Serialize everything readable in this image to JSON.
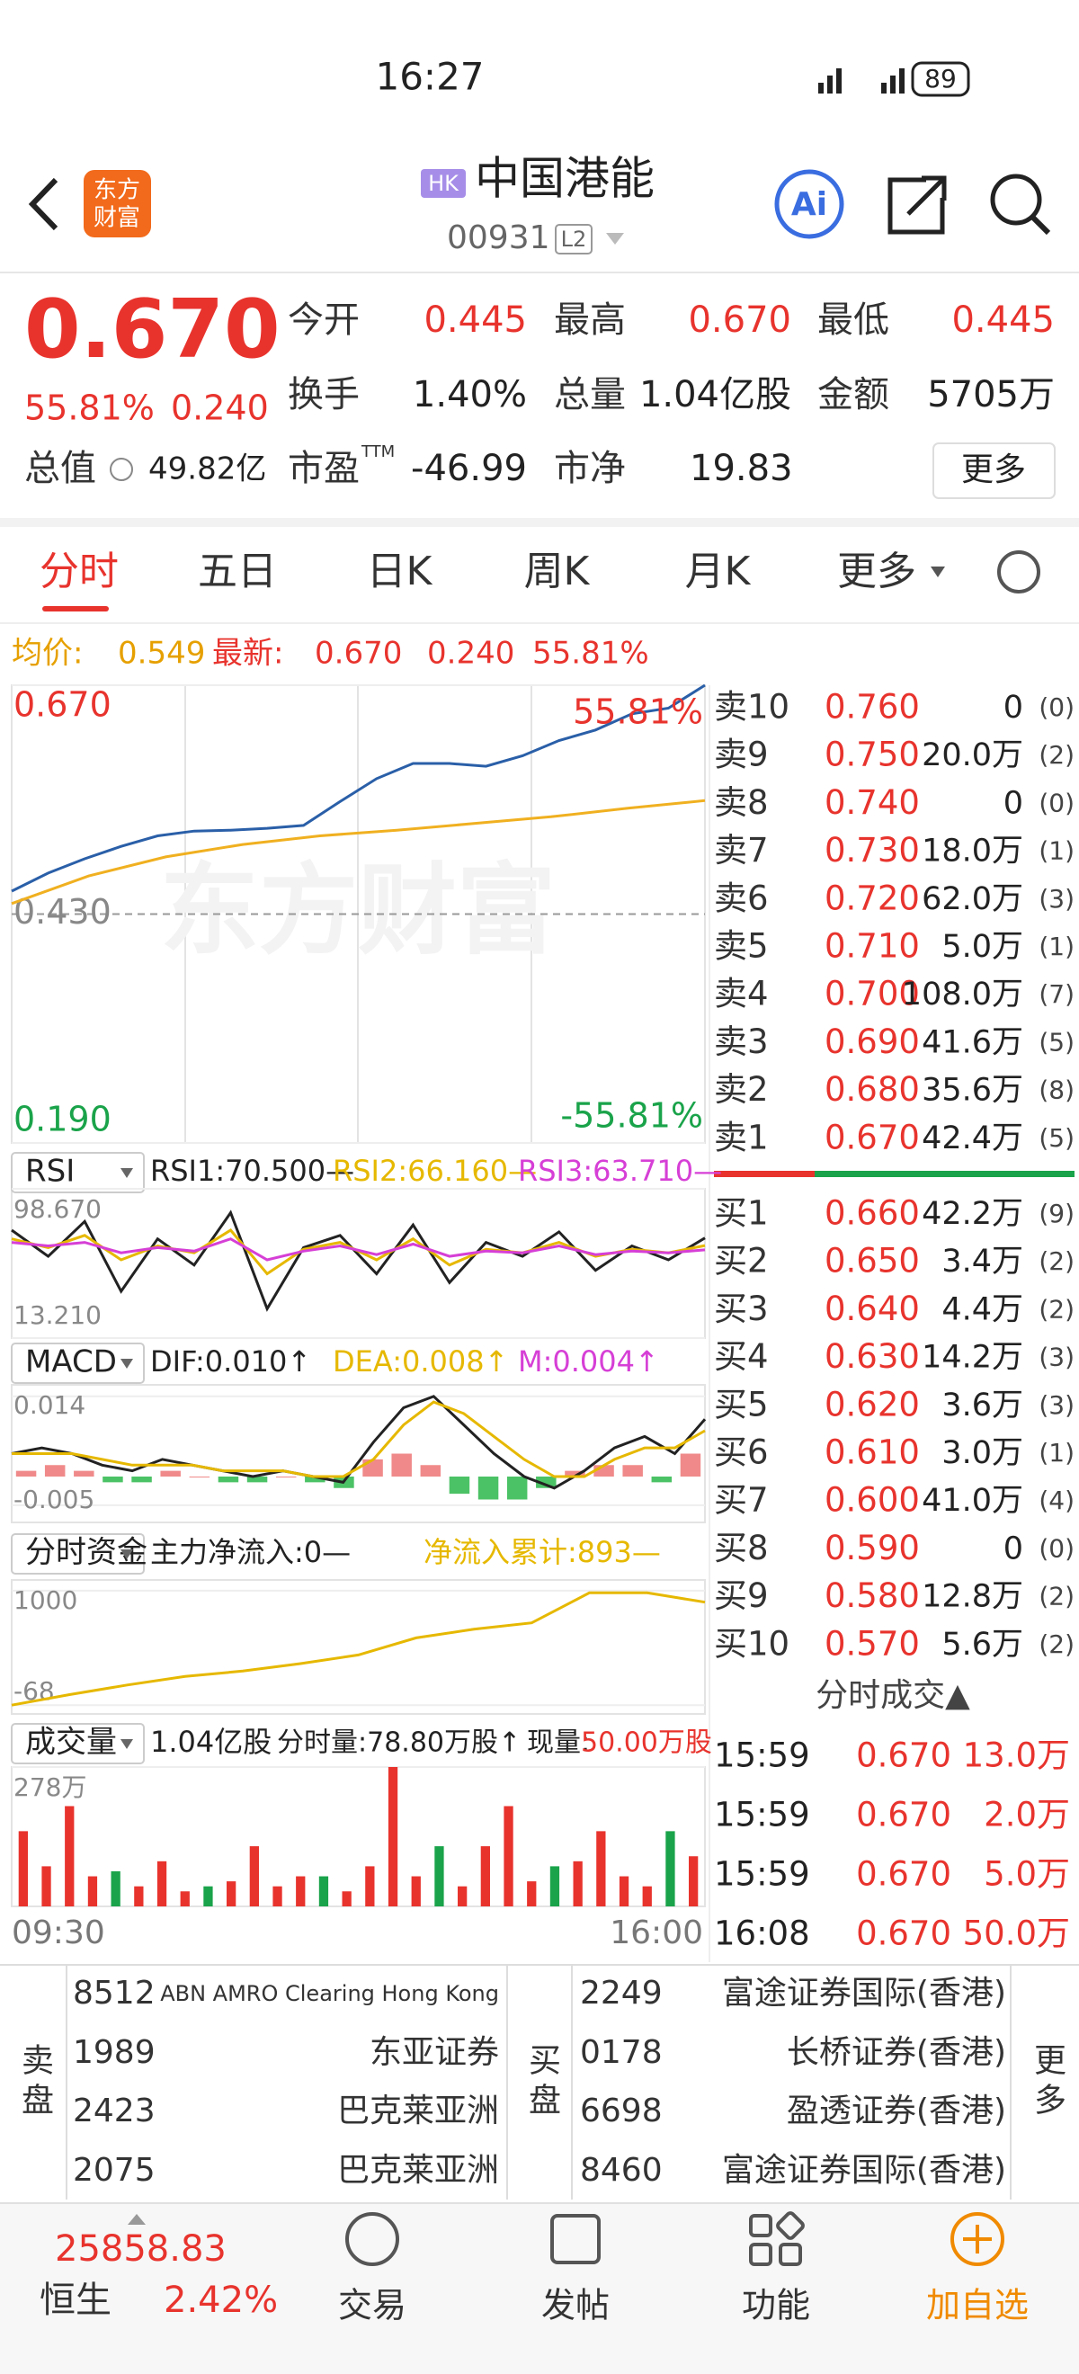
{
  "status_bar": {
    "time": "16:27",
    "battery": "89"
  },
  "header": {
    "logo": [
      "东方",
      "财富"
    ],
    "market_tag": "HK",
    "title": "中国港能",
    "code": "00931",
    "level": "L2"
  },
  "quote": {
    "price": "0.670",
    "change_pct": "55.81%",
    "change": "0.240",
    "fields": [
      {
        "label": "今开",
        "value": "0.445"
      },
      {
        "label": "最高",
        "value": "0.670"
      },
      {
        "label": "最低",
        "value": "0.445"
      },
      {
        "label": "换手",
        "value": "1.40%"
      },
      {
        "label": "总量",
        "value": "1.04亿股"
      },
      {
        "label": "金额",
        "value": "5705万"
      },
      {
        "label": "总值",
        "value": "49.82亿"
      },
      {
        "label": "市盈",
        "sup": "TTM",
        "value": "-46.99"
      },
      {
        "label": "市净",
        "value": "19.83"
      }
    ],
    "more_button": "更多"
  },
  "tabs": [
    "分时",
    "五日",
    "日K",
    "周K",
    "月K",
    "更多"
  ],
  "info_bar": {
    "avg_label": "均价:",
    "avg": "0.549",
    "last_label": "最新:",
    "last": "0.670",
    "change": "0.240",
    "change_pct": "55.81%"
  },
  "intraday": {
    "watermark": "东方财富",
    "ylim": [
      0.19,
      0.67
    ],
    "yticks": [
      {
        "value": 0.67,
        "label": "0.670"
      },
      {
        "value": 0.43,
        "label": "0.430"
      },
      {
        "value": 0.19,
        "label": "0.190"
      }
    ],
    "top_pct": "55.81%",
    "bottom_pct": "-55.81%",
    "price": [
      0.454,
      0.473,
      0.488,
      0.501,
      0.512,
      0.517,
      0.518,
      0.52,
      0.523,
      0.548,
      0.572,
      0.588,
      0.588,
      0.585,
      0.596,
      0.612,
      0.623,
      0.64,
      0.646,
      0.67
    ],
    "avg": [
      0.441,
      0.47,
      0.49,
      0.503,
      0.512,
      0.518,
      0.525,
      0.532,
      0.541,
      0.549
    ],
    "time_start": "09:30",
    "time_end": "16:00"
  },
  "rsi": {
    "selector": "RSI",
    "legend": [
      "RSI1:70.500—",
      "RSI2:66.160—",
      "RSI3:63.710—"
    ],
    "ylim": [
      13.21,
      98.67
    ],
    "yticks": [
      {
        "value": 98.67,
        "label": "98.670"
      },
      {
        "value": 13.21,
        "label": "13.210"
      }
    ],
    "series": [
      {
        "color": "#222222",
        "values": [
          75,
          60,
          80,
          40,
          70,
          55,
          85,
          30,
          65,
          72,
          50,
          78,
          45,
          68,
          60,
          74,
          52,
          66,
          58,
          70.5
        ]
      },
      {
        "color": "#e6b800",
        "values": [
          70,
          65,
          72,
          58,
          66,
          62,
          75,
          50,
          64,
          68,
          58,
          70,
          55,
          64,
          62,
          68,
          60,
          64,
          62,
          66.16
        ]
      },
      {
        "color": "#d63fd6",
        "values": [
          68,
          66,
          68,
          62,
          65,
          63,
          70,
          58,
          63,
          66,
          61,
          67,
          60,
          63,
          62,
          66,
          61,
          63,
          62,
          63.71
        ]
      }
    ]
  },
  "macd": {
    "selector": "MACD",
    "legend": [
      "DIF:0.010↑",
      "DEA:0.008↑",
      "M:0.004↑"
    ],
    "ylim": [
      -0.008,
      0.016
    ],
    "yticks": [
      {
        "value": 0.014,
        "label": "0.014"
      },
      {
        "value": -0.005,
        "label": "-0.005"
      }
    ],
    "bars": [
      0.001,
      0.002,
      0.001,
      -0.001,
      -0.001,
      0.001,
      0,
      -0.001,
      -0.001,
      0,
      -0.001,
      -0.002,
      0.003,
      0.004,
      0.002,
      -0.003,
      -0.004,
      -0.004,
      -0.002,
      0.001,
      0.002,
      0.002,
      -0.001,
      0.004
    ],
    "series": [
      {
        "color": "#222222",
        "values": [
          0.004,
          0.005,
          0.004,
          0.002,
          0.001,
          0.003,
          0.002,
          0.001,
          0,
          0.001,
          0,
          -0.001,
          0.006,
          0.012,
          0.014,
          0.009,
          0.004,
          0,
          -0.002,
          0.001,
          0.005,
          0.007,
          0.004,
          0.01
        ]
      },
      {
        "color": "#e6b800",
        "values": [
          0.004,
          0.004,
          0.004,
          0.003,
          0.002,
          0.002,
          0.002,
          0.001,
          0.001,
          0.001,
          0,
          0,
          0.003,
          0.009,
          0.013,
          0.011,
          0.007,
          0.003,
          0,
          0,
          0.003,
          0.005,
          0.005,
          0.008
        ]
      }
    ]
  },
  "flow": {
    "selector": "分时资金",
    "legend": [
      "主力净流入:0—",
      "净流入累计:893—"
    ],
    "ylim": [
      -150,
      1100
    ],
    "yticks": [
      1000,
      -68
    ],
    "series": [
      {
        "color": "#e6b800",
        "values": [
          -68,
          30,
          120,
          200,
          250,
          320,
          400,
          560,
          640,
          700,
          980,
          980,
          893
        ]
      }
    ]
  },
  "volume": {
    "selector": "成交量",
    "total": "1.04亿股",
    "minute": "分时量:78.80万股↑",
    "current_label": "现量:",
    "current": "50.00万股",
    "ylim": [
      0,
      278
    ],
    "yticks": [
      {
        "value": 278,
        "label": "278万"
      }
    ],
    "series": [
      {
        "color": "#e8332d",
        "values": [
          150,
          80,
          200,
          60,
          null,
          40,
          90,
          30,
          null,
          50,
          120,
          40,
          60,
          null,
          30,
          80,
          278,
          60,
          null,
          40,
          120,
          200,
          50,
          null,
          90,
          150,
          60,
          40,
          null,
          100
        ]
      },
      {
        "color": "#1aa34a",
        "values": [
          null,
          null,
          null,
          null,
          70,
          null,
          null,
          null,
          40,
          null,
          null,
          null,
          null,
          60,
          null,
          null,
          null,
          null,
          120,
          null,
          null,
          null,
          null,
          80,
          null,
          null,
          null,
          null,
          150,
          null
        ]
      }
    ]
  },
  "order_book": {
    "asks": [
      [
        "卖10",
        "0.760",
        "0",
        "(0)"
      ],
      [
        "卖9",
        "0.750",
        "20.0万",
        "(2)"
      ],
      [
        "卖8",
        "0.740",
        "0",
        "(0)"
      ],
      [
        "卖7",
        "0.730",
        "18.0万",
        "(1)"
      ],
      [
        "卖6",
        "0.720",
        "62.0万",
        "(3)"
      ],
      [
        "卖5",
        "0.710",
        "5.0万",
        "(1)"
      ],
      [
        "卖4",
        "0.700",
        "108.0万",
        "(7)"
      ],
      [
        "卖3",
        "0.690",
        "41.6万",
        "(5)"
      ],
      [
        "卖2",
        "0.680",
        "35.6万",
        "(8)"
      ],
      [
        "卖1",
        "0.670",
        "42.4万",
        "(5)"
      ]
    ],
    "bids": [
      [
        "买1",
        "0.660",
        "42.2万",
        "(9)"
      ],
      [
        "买2",
        "0.650",
        "3.4万",
        "(2)"
      ],
      [
        "买3",
        "0.640",
        "4.4万",
        "(2)"
      ],
      [
        "买4",
        "0.630",
        "14.2万",
        "(3)"
      ],
      [
        "买5",
        "0.620",
        "3.6万",
        "(3)"
      ],
      [
        "买6",
        "0.610",
        "3.0万",
        "(1)"
      ],
      [
        "买7",
        "0.600",
        "41.0万",
        "(4)"
      ],
      [
        "买8",
        "0.590",
        "0",
        "(0)"
      ],
      [
        "买9",
        "0.580",
        "12.8万",
        "(2)"
      ],
      [
        "买10",
        "0.570",
        "5.6万",
        "(2)"
      ]
    ]
  },
  "trades": {
    "title": "分时成交▲",
    "rows": [
      [
        "15:59",
        "0.670",
        "13.0万"
      ],
      [
        "15:59",
        "0.670",
        "2.0万"
      ],
      [
        "15:59",
        "0.670",
        "5.0万"
      ],
      [
        "16:08",
        "0.670",
        "50.0万"
      ]
    ]
  },
  "brokers": {
    "sell_label": "卖盘",
    "buy_label": "买盘",
    "more": "更多",
    "sell": [
      [
        "8512",
        "ABN AMRO Clearing Hong Kong"
      ],
      [
        "1989",
        "东亚证券"
      ],
      [
        "2423",
        "巴克莱亚洲"
      ],
      [
        "2075",
        "巴克莱亚洲"
      ]
    ],
    "buy": [
      [
        "2249",
        "富途证券国际(香港)"
      ],
      [
        "0178",
        "长桥证券(香港)"
      ],
      [
        "6698",
        "盈透证券(香港)"
      ],
      [
        "8460",
        "富途证券国际(香港)"
      ]
    ]
  },
  "nav": {
    "index_value": "25858.83",
    "index_name": "恒生",
    "index_change": "2.42%",
    "items": [
      "交易",
      "发帖",
      "功能",
      "加自选"
    ]
  }
}
